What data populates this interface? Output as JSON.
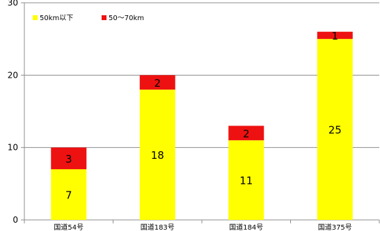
{
  "chart_data": {
    "type": "bar",
    "stacked": true,
    "categories": [
      "国道54号",
      "国道183号",
      "国道184号",
      "国道375号"
    ],
    "series": [
      {
        "name": "50km以下",
        "color": "#ffff00",
        "values": [
          7,
          18,
          11,
          25
        ]
      },
      {
        "name": "50〜70km",
        "color": "#ee1111",
        "values": [
          3,
          2,
          2,
          1
        ]
      }
    ],
    "title": "",
    "xlabel": "",
    "ylabel": "",
    "ylim": [
      0,
      30
    ],
    "yticks": [
      0,
      10,
      20,
      30
    ],
    "grid": true,
    "legend_position": "top-left"
  }
}
